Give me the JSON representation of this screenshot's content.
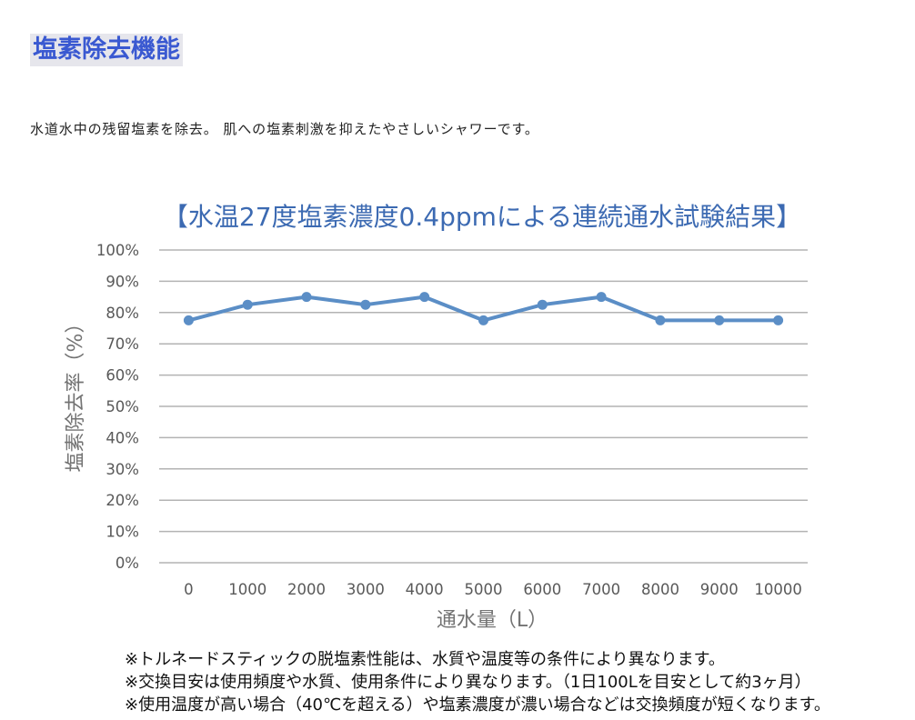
{
  "heading": "塩素除去機能",
  "description": "水道水中の残留塩素を除去。 肌への塩素刺激を抑えたやさしいシャワーです。",
  "colors": {
    "heading": "#3a59d1",
    "heading_bg": "#e6e6ec",
    "title": "#3c6ab2",
    "line": "#5b8ec6",
    "grid": "#b3b3b3"
  },
  "chart_data": {
    "type": "line",
    "title": "【水温27度塩素濃度0.4ppmによる連続通水試験結果】",
    "xlabel": "通水量（L）",
    "ylabel": "塩素除去率（%）",
    "categories": [
      "0",
      "1000",
      "2000",
      "3000",
      "4000",
      "5000",
      "6000",
      "7000",
      "8000",
      "9000",
      "10000"
    ],
    "values": [
      77.5,
      82.5,
      85,
      82.5,
      85,
      77.5,
      82.5,
      85,
      77.5,
      77.5,
      77.5
    ],
    "ylim": [
      0,
      100
    ],
    "yticks": [
      0,
      10,
      20,
      30,
      40,
      50,
      60,
      70,
      80,
      90,
      100
    ],
    "ytick_labels": [
      "0%",
      "10%",
      "20%",
      "30%",
      "40%",
      "50%",
      "60%",
      "70%",
      "80%",
      "90%",
      "100%"
    ],
    "grid": "horizontal",
    "markers": true
  },
  "notes": [
    "※トルネードスティックの脱塩素性能は、水質や温度等の条件により異なります。",
    "※交換目安は使用頻度や水質、使用条件により異なります。（1日100Lを目安として約3ヶ月）",
    "※使用温度が高い場合（40℃を超える）や塩素濃度が濃い場合などは交換頻度が短くなります。"
  ]
}
